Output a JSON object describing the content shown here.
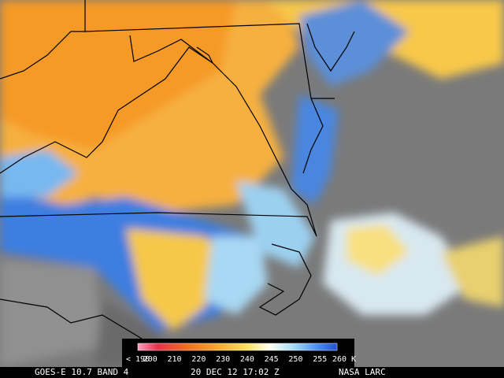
{
  "colorbar": {
    "labels": [
      "< 190",
      "200",
      "210",
      "220",
      "230",
      "240",
      "245",
      "250",
      "255",
      "260 K"
    ]
  },
  "footer": {
    "satellite": "GOES-E 10.7 BAND 4",
    "time": "20 DEC 12 17:02 Z",
    "source": "NASA LARC"
  }
}
